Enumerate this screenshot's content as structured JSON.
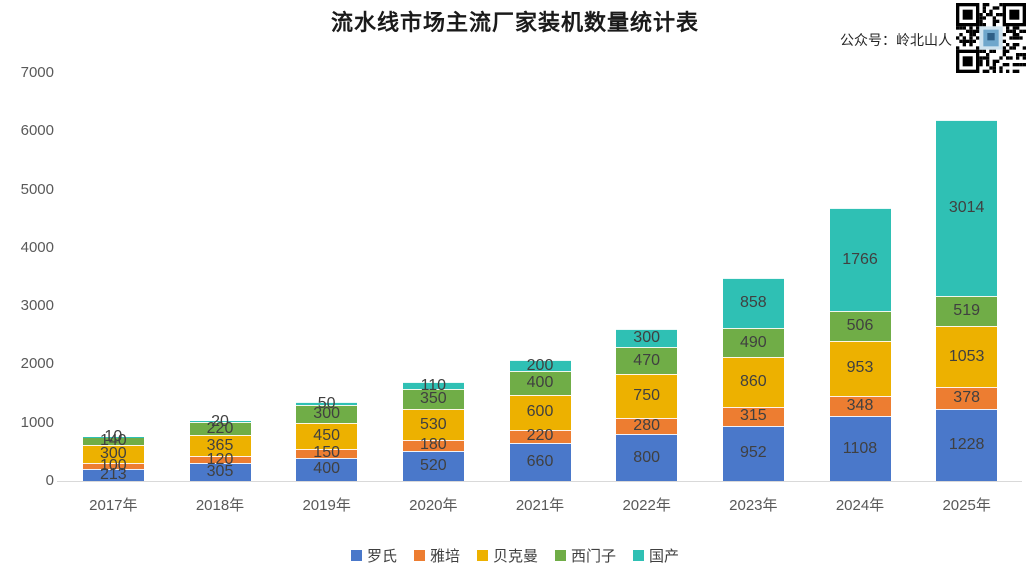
{
  "title": "流水线市场主流厂家装机数量统计表",
  "watermark": "公众号：岭北山人",
  "chart_data": {
    "type": "bar",
    "stacked": true,
    "title": "流水线市场主流厂家装机数量统计表",
    "categories": [
      "2017年",
      "2018年",
      "2019年",
      "2020年",
      "2021年",
      "2022年",
      "2023年",
      "2024年",
      "2025年"
    ],
    "series": [
      {
        "name": "罗氏",
        "color": "#4A78CA",
        "values": [
          213,
          305,
          400,
          520,
          660,
          800,
          952,
          1108,
          1228
        ]
      },
      {
        "name": "雅培",
        "color": "#ED7D31",
        "values": [
          100,
          120,
          150,
          180,
          220,
          280,
          315,
          348,
          378
        ]
      },
      {
        "name": "贝克曼",
        "color": "#EDB100",
        "values": [
          300,
          365,
          450,
          530,
          600,
          750,
          860,
          953,
          1053
        ]
      },
      {
        "name": "西门子",
        "color": "#70AD47",
        "values": [
          140,
          220,
          300,
          350,
          400,
          470,
          490,
          506,
          519
        ]
      },
      {
        "name": "国产",
        "color": "#2FC0B4",
        "values": [
          10,
          20,
          50,
          110,
          200,
          300,
          858,
          1766,
          3014
        ]
      }
    ],
    "xlabel": "",
    "ylabel": "",
    "ylim": [
      0,
      7000
    ],
    "yticks": [
      0,
      1000,
      2000,
      3000,
      4000,
      5000,
      6000,
      7000
    ],
    "grid": false,
    "legend_position": "bottom",
    "data_labels": true,
    "label_color": "#404040"
  }
}
